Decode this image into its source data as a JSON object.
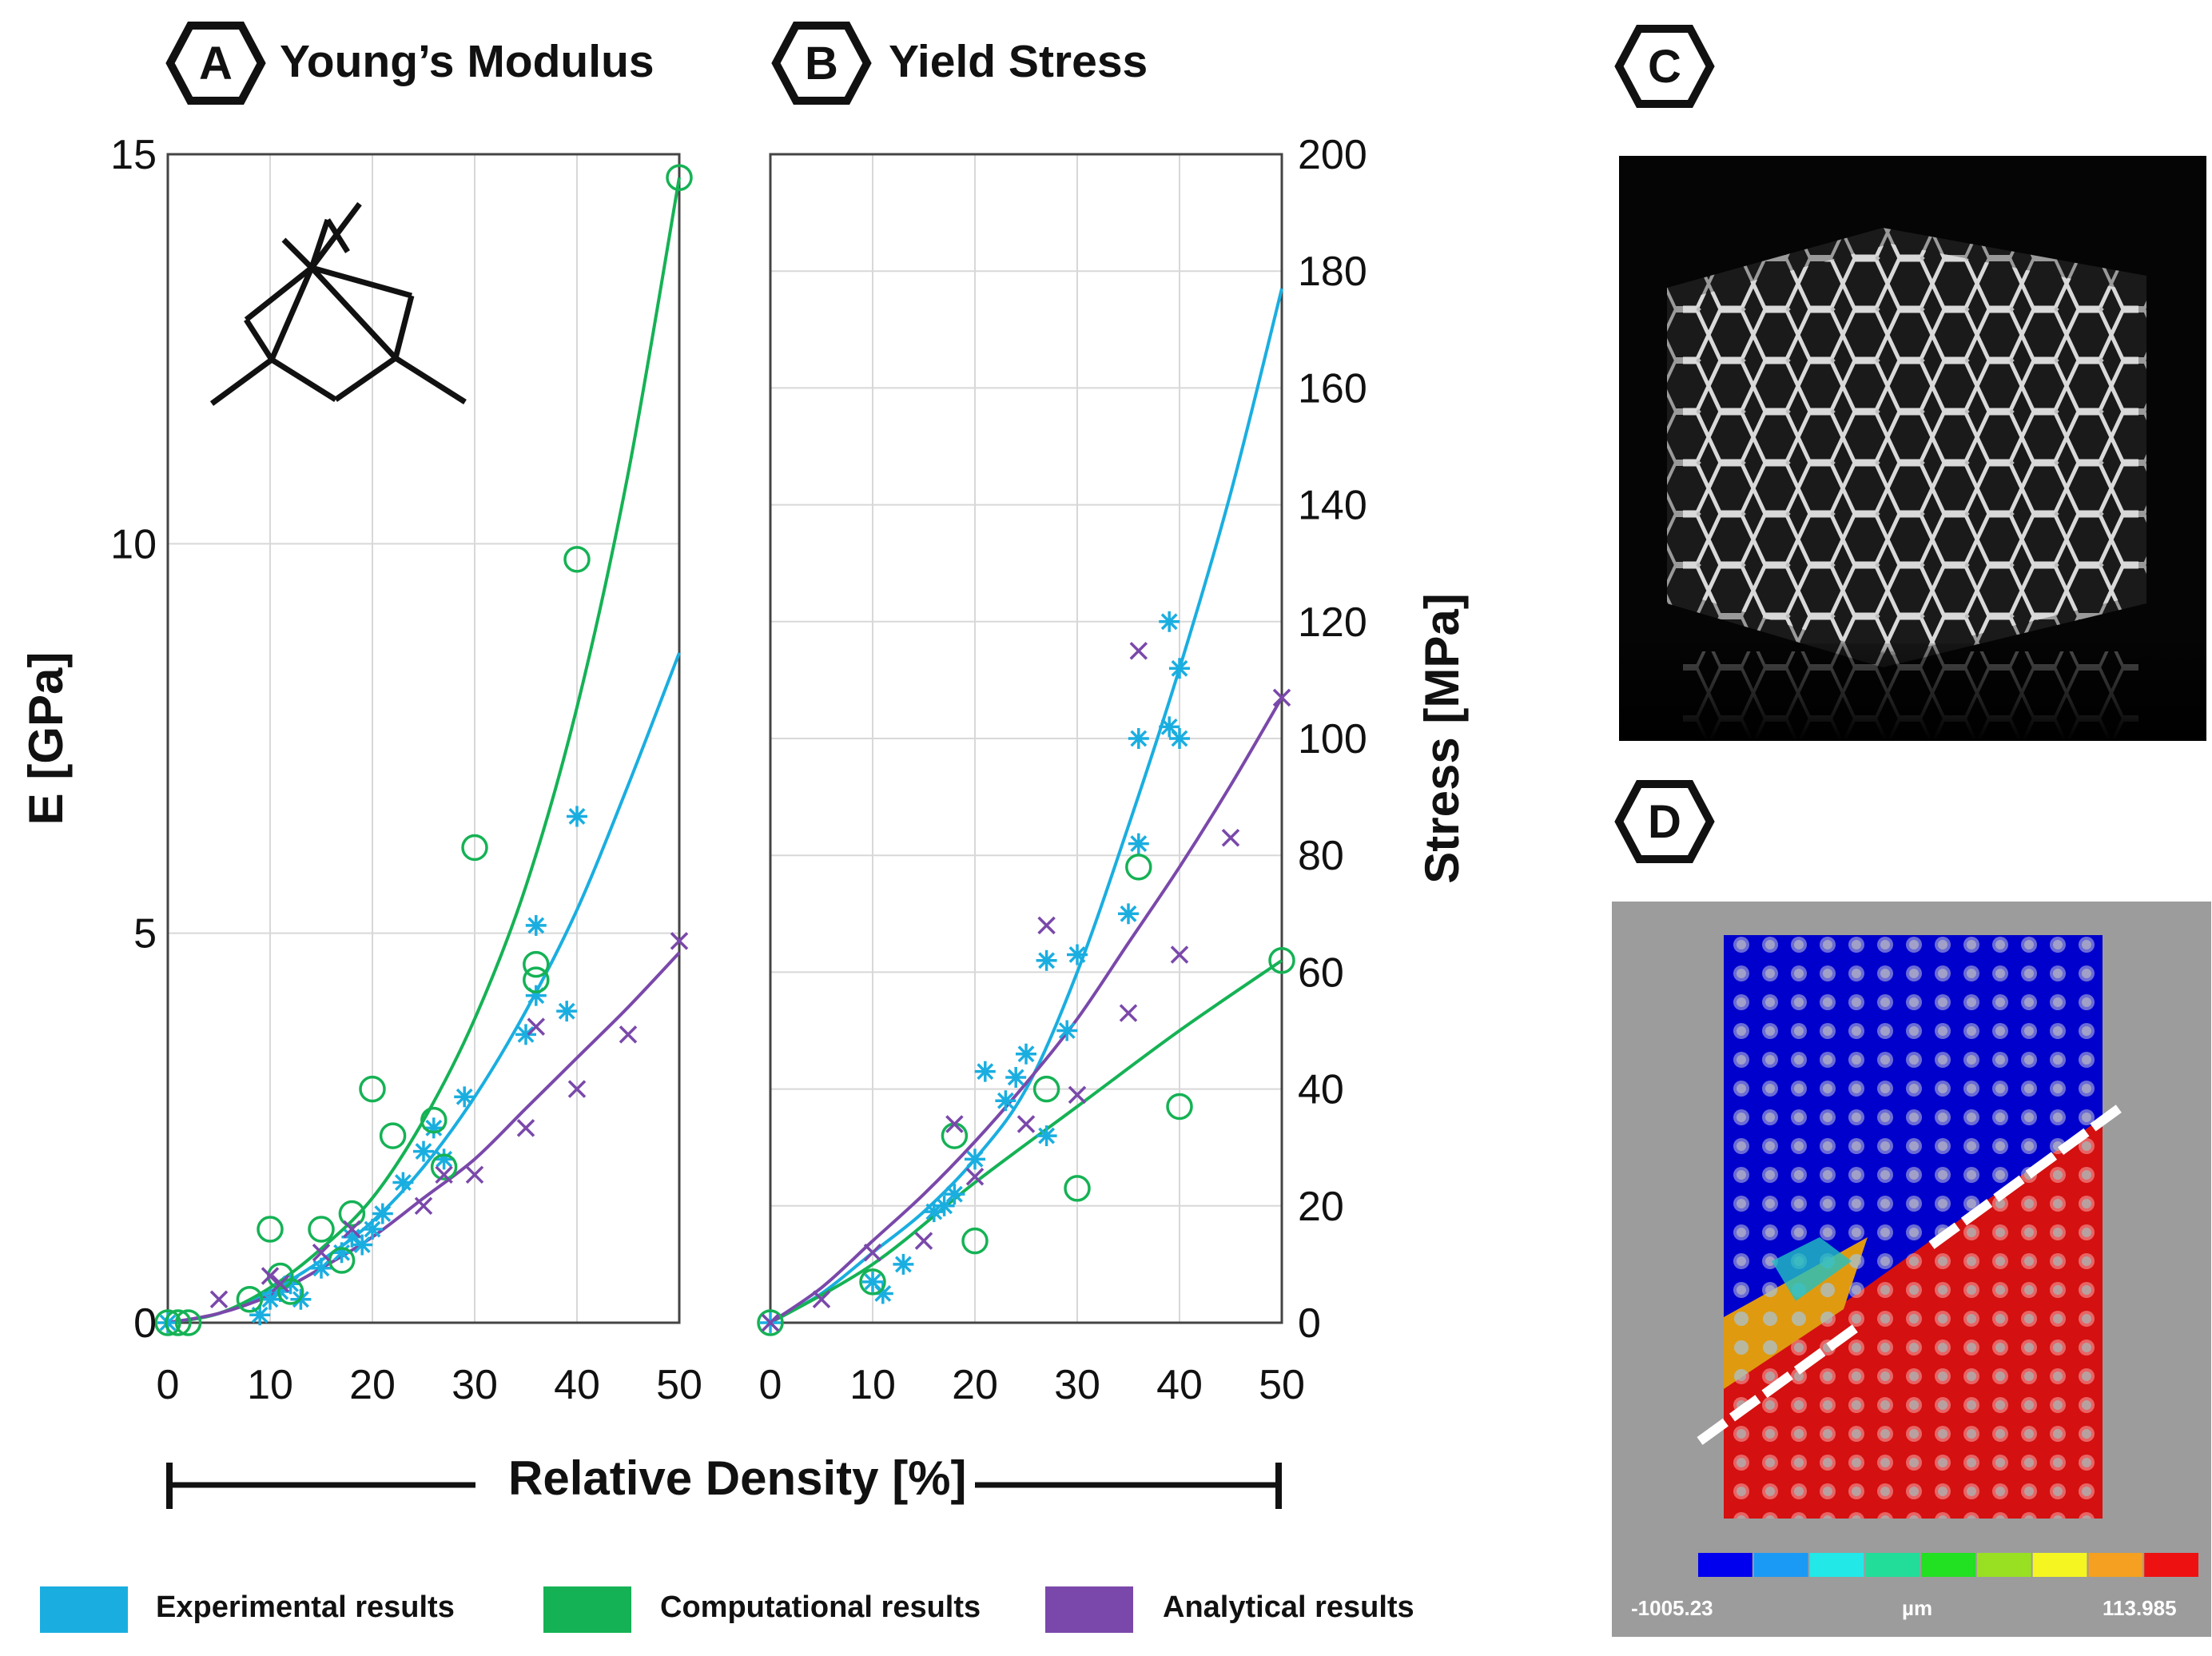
{
  "panels": {
    "a": {
      "letter": "A",
      "title": "Young’s Modulus"
    },
    "b": {
      "letter": "B",
      "title": "Yield Stress"
    },
    "c": {
      "letter": "C"
    },
    "d": {
      "letter": "D"
    }
  },
  "shared_xlabel": "Relative Density [%]",
  "legend": [
    {
      "label": "Experimental results",
      "color": "#1aaee0"
    },
    {
      "label": "Computational results",
      "color": "#15b255"
    },
    {
      "label": "Analytical results",
      "color": "#7a48aa"
    }
  ],
  "colorbar": {
    "min_label": "-1005.23",
    "unit_label": "µm",
    "max_label": "113.985",
    "colors": [
      "#0000ee",
      "#1a9af5",
      "#22e8e8",
      "#22dd99",
      "#22e022",
      "#99e022",
      "#f5f522",
      "#f5a020",
      "#ee1111"
    ]
  },
  "chart_data": [
    {
      "type": "scatter",
      "panel": "A",
      "title": "Young’s Modulus",
      "xlabel": "",
      "ylabel": "E [GPa]",
      "xlim": [
        0,
        50
      ],
      "ylim": [
        0,
        15
      ],
      "xticks": [
        0,
        10,
        20,
        30,
        40,
        50
      ],
      "yticks": [
        0,
        5,
        10,
        15
      ],
      "grid": true,
      "series": [
        {
          "name": "Experimental results",
          "color": "#1aaee0",
          "marker": "asterisk",
          "points": [
            [
              0,
              0
            ],
            [
              9,
              0.1
            ],
            [
              10,
              0.3
            ],
            [
              11,
              0.4
            ],
            [
              12,
              0.5
            ],
            [
              13,
              0.3
            ],
            [
              15,
              0.7
            ],
            [
              17,
              0.9
            ],
            [
              18,
              1.1
            ],
            [
              19,
              1.0
            ],
            [
              20,
              1.2
            ],
            [
              21,
              1.4
            ],
            [
              23,
              1.8
            ],
            [
              25,
              2.2
            ],
            [
              26,
              2.5
            ],
            [
              27,
              2.1
            ],
            [
              29,
              2.9
            ],
            [
              35,
              3.7
            ],
            [
              36,
              4.2
            ],
            [
              36,
              5.1
            ],
            [
              39,
              4.0
            ],
            [
              40,
              6.5
            ]
          ],
          "fit": [
            [
              0,
              0
            ],
            [
              5,
              0.12
            ],
            [
              10,
              0.4
            ],
            [
              15,
              0.8
            ],
            [
              20,
              1.3
            ],
            [
              25,
              2.0
            ],
            [
              30,
              2.9
            ],
            [
              35,
              4.0
            ],
            [
              40,
              5.3
            ],
            [
              45,
              6.9
            ],
            [
              50,
              8.6
            ]
          ]
        },
        {
          "name": "Computational results",
          "color": "#15b255",
          "marker": "circle",
          "points": [
            [
              0,
              0
            ],
            [
              1,
              0
            ],
            [
              2,
              0
            ],
            [
              8,
              0.3
            ],
            [
              10,
              1.2
            ],
            [
              11,
              0.6
            ],
            [
              12,
              0.4
            ],
            [
              15,
              1.2
            ],
            [
              17,
              0.8
            ],
            [
              18,
              1.4
            ],
            [
              20,
              3.0
            ],
            [
              22,
              2.4
            ],
            [
              26,
              2.6
            ],
            [
              27,
              2.0
            ],
            [
              30,
              6.1
            ],
            [
              36,
              4.6
            ],
            [
              36,
              4.4
            ],
            [
              40,
              9.8
            ],
            [
              50,
              14.7
            ]
          ],
          "fit": [
            [
              0,
              0
            ],
            [
              5,
              0.12
            ],
            [
              10,
              0.45
            ],
            [
              15,
              0.95
            ],
            [
              20,
              1.6
            ],
            [
              25,
              2.6
            ],
            [
              30,
              3.9
            ],
            [
              35,
              5.6
            ],
            [
              40,
              7.9
            ],
            [
              45,
              10.9
            ],
            [
              50,
              14.7
            ]
          ]
        },
        {
          "name": "Analytical results",
          "color": "#7a48aa",
          "marker": "cross",
          "points": [
            [
              5,
              0.3
            ],
            [
              10,
              0.6
            ],
            [
              11,
              0.5
            ],
            [
              15,
              0.9
            ],
            [
              18,
              1.2
            ],
            [
              25,
              1.5
            ],
            [
              27,
              1.9
            ],
            [
              30,
              1.9
            ],
            [
              35,
              2.5
            ],
            [
              36,
              3.8
            ],
            [
              40,
              3.0
            ],
            [
              45,
              3.7
            ],
            [
              50,
              4.9
            ]
          ],
          "fit": [
            [
              0,
              0
            ],
            [
              5,
              0.12
            ],
            [
              10,
              0.35
            ],
            [
              15,
              0.7
            ],
            [
              20,
              1.1
            ],
            [
              25,
              1.6
            ],
            [
              30,
              2.1
            ],
            [
              35,
              2.75
            ],
            [
              40,
              3.4
            ],
            [
              45,
              4.05
            ],
            [
              50,
              4.75
            ]
          ]
        }
      ]
    },
    {
      "type": "scatter",
      "panel": "B",
      "title": "Yield Stress",
      "xlabel": "",
      "ylabel": "Stress [MPa]",
      "xlim": [
        0,
        50
      ],
      "ylim": [
        0,
        200
      ],
      "xticks": [
        0,
        10,
        20,
        30,
        40,
        50
      ],
      "yticks": [
        0,
        20,
        40,
        60,
        80,
        100,
        120,
        140,
        160,
        180,
        200
      ],
      "grid": true,
      "series": [
        {
          "name": "Experimental results",
          "color": "#1aaee0",
          "marker": "asterisk",
          "points": [
            [
              0,
              0
            ],
            [
              10,
              7
            ],
            [
              11,
              5
            ],
            [
              13,
              10
            ],
            [
              16,
              19
            ],
            [
              17,
              20
            ],
            [
              18,
              22
            ],
            [
              20,
              28
            ],
            [
              21,
              43
            ],
            [
              23,
              38
            ],
            [
              24,
              42
            ],
            [
              25,
              46
            ],
            [
              27,
              32
            ],
            [
              27,
              62
            ],
            [
              29,
              50
            ],
            [
              30,
              63
            ],
            [
              35,
              70
            ],
            [
              36,
              82
            ],
            [
              36,
              100
            ],
            [
              39,
              102
            ],
            [
              39,
              120
            ],
            [
              40,
              100
            ],
            [
              40,
              112
            ]
          ],
          "fit": [
            [
              0,
              0
            ],
            [
              5,
              5
            ],
            [
              10,
              12
            ],
            [
              15,
              19
            ],
            [
              20,
              28
            ],
            [
              25,
              40
            ],
            [
              30,
              60
            ],
            [
              35,
              85
            ],
            [
              40,
              112
            ],
            [
              45,
              142
            ],
            [
              50,
              177
            ]
          ]
        },
        {
          "name": "Computational results",
          "color": "#15b255",
          "marker": "circle",
          "points": [
            [
              0,
              0
            ],
            [
              10,
              7
            ],
            [
              18,
              32
            ],
            [
              20,
              14
            ],
            [
              27,
              40
            ],
            [
              30,
              23
            ],
            [
              36,
              78
            ],
            [
              40,
              37
            ],
            [
              50,
              62
            ]
          ],
          "fit": [
            [
              0,
              0
            ],
            [
              10,
              10
            ],
            [
              20,
              24
            ],
            [
              30,
              37
            ],
            [
              40,
              50
            ],
            [
              50,
              62
            ]
          ]
        },
        {
          "name": "Analytical results",
          "color": "#7a48aa",
          "marker": "cross",
          "points": [
            [
              0,
              0
            ],
            [
              5,
              4
            ],
            [
              10,
              12
            ],
            [
              15,
              14
            ],
            [
              18,
              34
            ],
            [
              20,
              25
            ],
            [
              25,
              34
            ],
            [
              27,
              68
            ],
            [
              30,
              39
            ],
            [
              35,
              53
            ],
            [
              36,
              115
            ],
            [
              40,
              63
            ],
            [
              45,
              83
            ],
            [
              50,
              107
            ]
          ],
          "fit": [
            [
              0,
              0
            ],
            [
              5,
              6
            ],
            [
              10,
              14
            ],
            [
              15,
              22
            ],
            [
              20,
              31
            ],
            [
              25,
              41
            ],
            [
              30,
              52
            ],
            [
              35,
              65
            ],
            [
              40,
              78
            ],
            [
              45,
              92
            ],
            [
              50,
              107
            ]
          ]
        }
      ]
    }
  ]
}
